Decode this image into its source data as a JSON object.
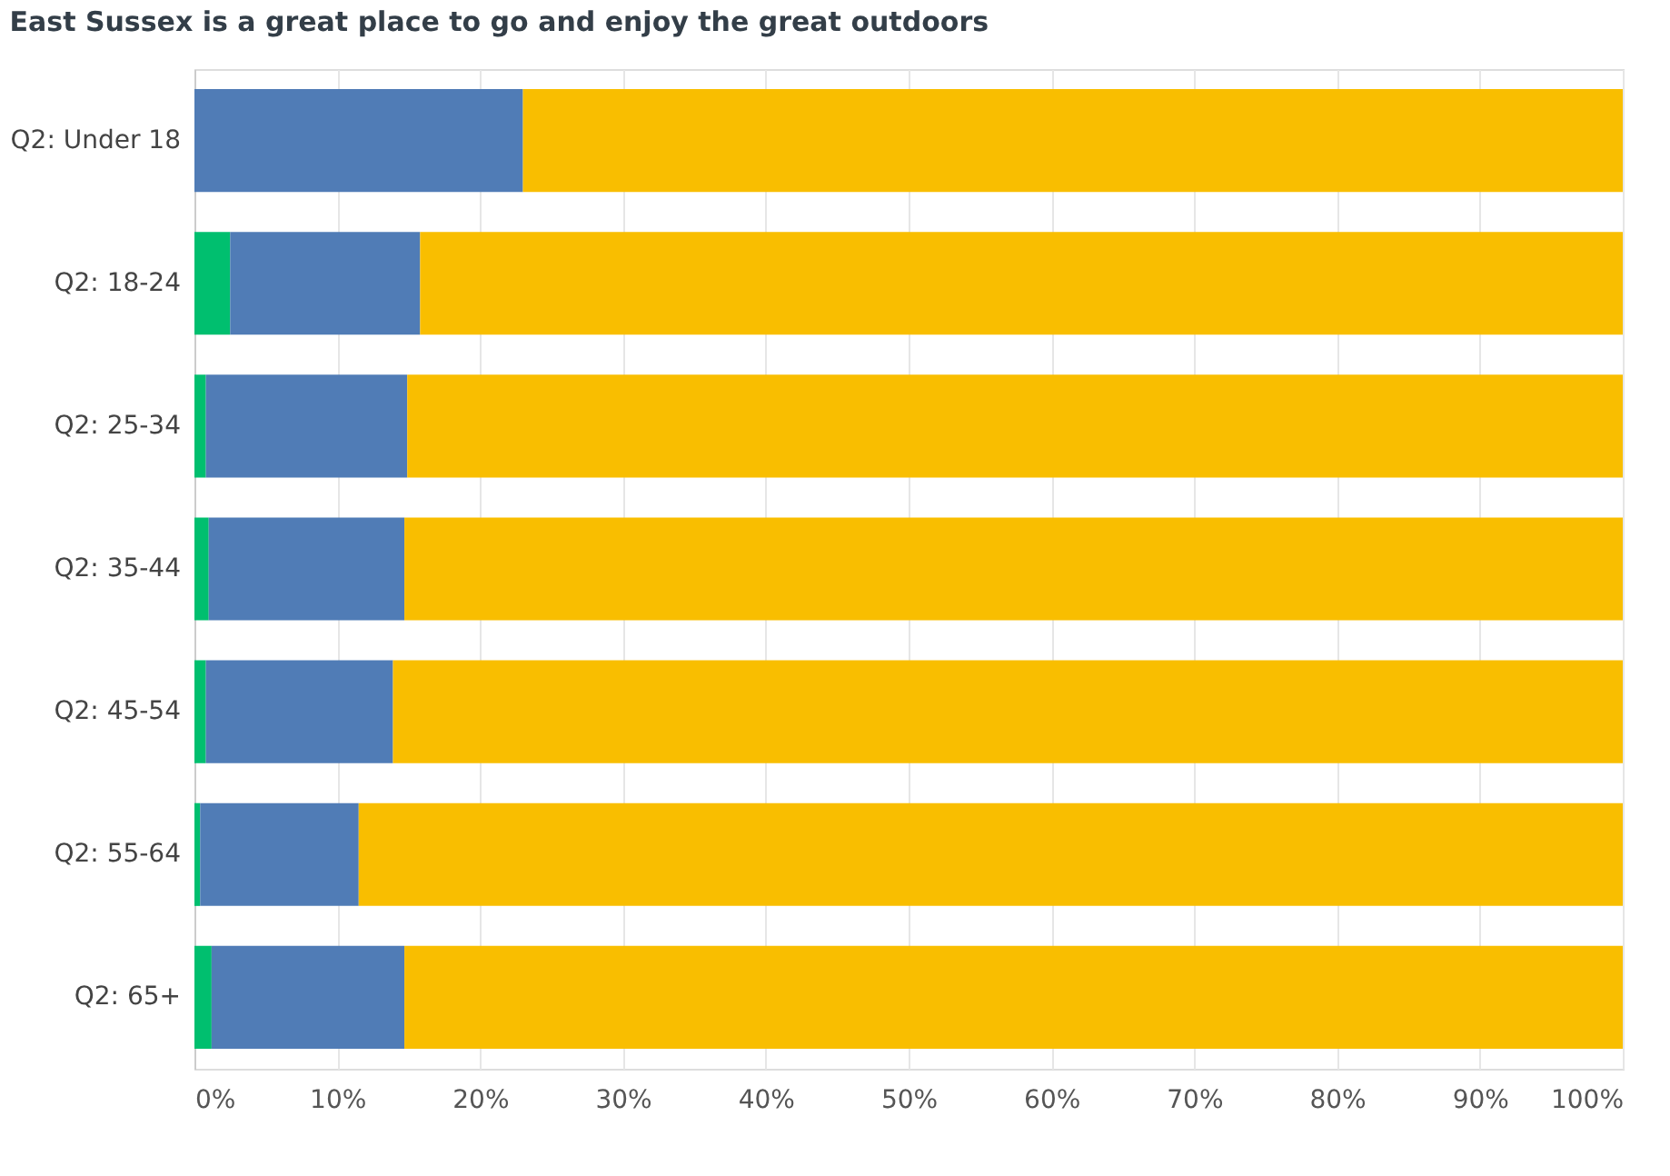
{
  "chart_data": {
    "type": "bar",
    "orientation": "horizontal",
    "stacked": true,
    "title": "East Sussex is a great place to go and enjoy the great outdoors",
    "categories": [
      "Q2: Under 18",
      "Q2: 18-24",
      "Q2: 25-34",
      "Q2: 35-44",
      "Q2: 45-54",
      "Q2: 55-64",
      "Q2: 65+"
    ],
    "series": [
      {
        "color": "#00bf6f",
        "values": [
          0,
          2.5,
          0.8,
          1.0,
          0.8,
          0.4,
          1.2
        ]
      },
      {
        "color": "#507cb6",
        "values": [
          23.0,
          13.3,
          14.1,
          13.7,
          13.1,
          11.1,
          13.5
        ]
      },
      {
        "color": "#f9be00",
        "values": [
          77.0,
          84.2,
          85.1,
          85.3,
          86.1,
          88.5,
          85.3
        ]
      }
    ],
    "xlim": [
      0,
      100
    ],
    "xticks": [
      {
        "value": 0,
        "label": "0%"
      },
      {
        "value": 10,
        "label": "10%"
      },
      {
        "value": 20,
        "label": "20%"
      },
      {
        "value": 30,
        "label": "30%"
      },
      {
        "value": 40,
        "label": "40%"
      },
      {
        "value": 50,
        "label": "50%"
      },
      {
        "value": 60,
        "label": "60%"
      },
      {
        "value": 70,
        "label": "70%"
      },
      {
        "value": 80,
        "label": "80%"
      },
      {
        "value": 90,
        "label": "90%"
      },
      {
        "value": 100,
        "label": "100%"
      }
    ],
    "grid": "x",
    "legend": false
  }
}
